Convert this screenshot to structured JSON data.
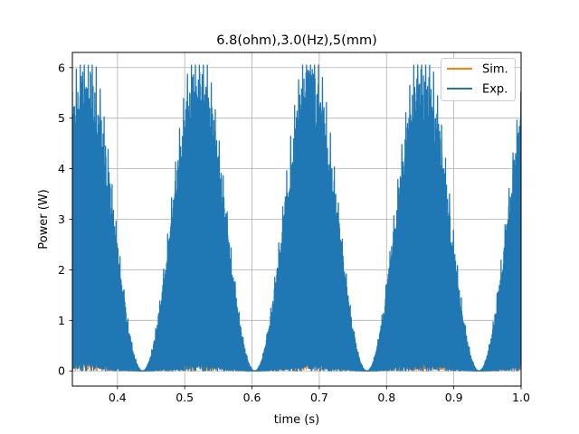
{
  "chart_data": {
    "type": "line",
    "title": "6.8(ohm),3.0(Hz),5(mm)",
    "xlabel": "time (s)",
    "ylabel": "Power (W)",
    "xlim": [
      0.333,
      1.0
    ],
    "ylim": [
      -0.3,
      6.3
    ],
    "xticks": [
      0.4,
      0.5,
      0.6,
      0.7,
      0.8,
      0.9,
      1.0
    ],
    "xtick_labels": [
      "0.4",
      "0.5",
      "0.6",
      "0.7",
      "0.8",
      "0.9",
      "1.0"
    ],
    "yticks": [
      0,
      1,
      2,
      3,
      4,
      5,
      6
    ],
    "ytick_labels": [
      "0",
      "1",
      "2",
      "3",
      "4",
      "5",
      "6"
    ],
    "grid": true,
    "legend_position": "upper right",
    "series": [
      {
        "name": "Sim.",
        "color": "#ff7f0e",
        "envelope_peaks": [
          {
            "t": 0.354,
            "peak": 5.1
          },
          {
            "t": 0.521,
            "peak": 5.1
          },
          {
            "t": 0.688,
            "peak": 5.1
          },
          {
            "t": 0.854,
            "peak": 5.1
          }
        ],
        "envelope_troughs": [
          {
            "t": 0.432,
            "value": 0.0
          },
          {
            "t": 0.601,
            "value": 0.0
          },
          {
            "t": 0.771,
            "value": 0.0
          },
          {
            "t": 0.937,
            "value": 0.0
          }
        ]
      },
      {
        "name": "Exp.",
        "color": "#1f77b4",
        "envelope_peaks": [
          {
            "t": 0.354,
            "peak": 6.0
          },
          {
            "t": 0.521,
            "peak": 6.0
          },
          {
            "t": 0.688,
            "peak": 6.0
          },
          {
            "t": 0.854,
            "peak": 6.0
          }
        ],
        "envelope_troughs": [
          {
            "t": 0.432,
            "value": 0.0
          },
          {
            "t": 0.601,
            "value": 0.0
          },
          {
            "t": 0.771,
            "value": 0.0
          },
          {
            "t": 0.937,
            "value": 0.0
          }
        ]
      }
    ]
  }
}
